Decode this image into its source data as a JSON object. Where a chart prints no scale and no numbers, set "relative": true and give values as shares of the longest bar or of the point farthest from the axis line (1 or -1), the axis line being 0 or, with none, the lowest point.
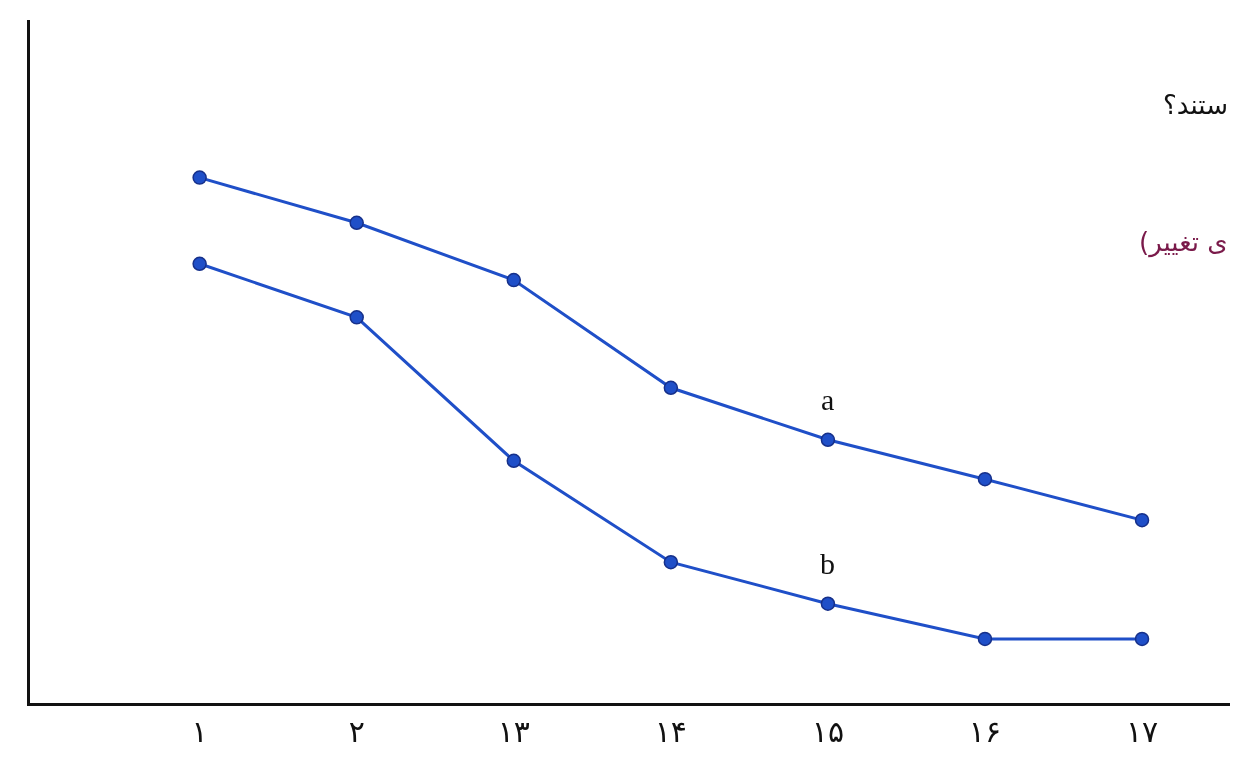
{
  "chart_data": {
    "type": "line",
    "relative": true,
    "marker": "circle",
    "line_style": "solid",
    "legend": false,
    "categories": [
      "۱",
      "۲",
      "۱۳",
      "۱۴",
      "۱۵",
      "۱۶",
      "۱۷"
    ],
    "series": [
      {
        "name": "a",
        "color": "#1f4fc8",
        "values": [
          1,
          0.914,
          0.805,
          0.6,
          0.501,
          0.426,
          0.348
        ]
      },
      {
        "name": "b",
        "color": "#1f4fc8",
        "values": [
          0.836,
          0.734,
          0.461,
          0.268,
          0.189,
          0.122,
          0.122
        ]
      }
    ],
    "annotations": [
      "ستند؟",
      "ی تغییر)"
    ]
  }
}
